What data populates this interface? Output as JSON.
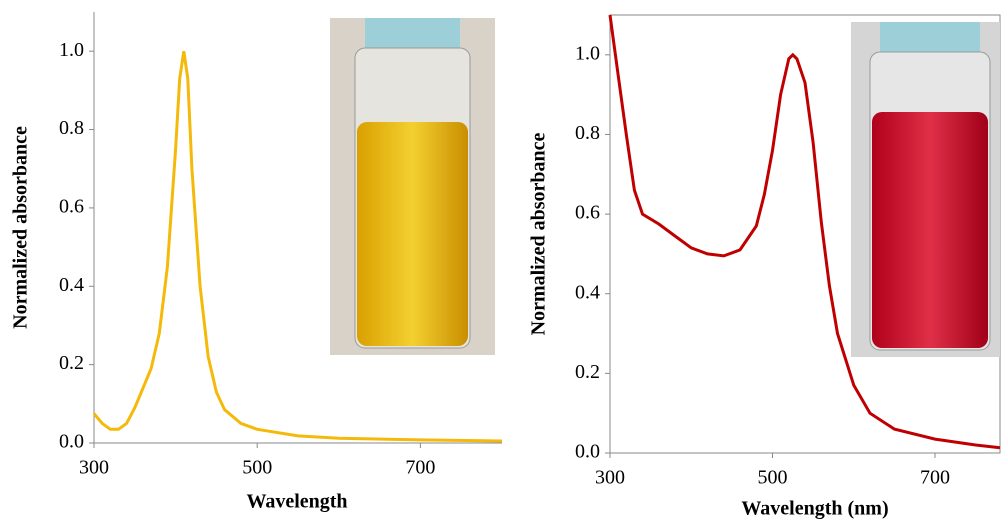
{
  "chart_data": [
    {
      "type": "line",
      "xlabel": "Wavelength",
      "ylabel": "Normalized absorbance",
      "color": "#f5b90a",
      "x": [
        300,
        310,
        320,
        330,
        340,
        350,
        360,
        370,
        380,
        390,
        400,
        405,
        410,
        415,
        420,
        430,
        440,
        450,
        460,
        480,
        500,
        550,
        600,
        700,
        800
      ],
      "values": [
        0.075,
        0.05,
        0.035,
        0.035,
        0.05,
        0.09,
        0.14,
        0.19,
        0.28,
        0.45,
        0.75,
        0.93,
        1.0,
        0.93,
        0.7,
        0.4,
        0.22,
        0.13,
        0.085,
        0.05,
        0.035,
        0.018,
        0.012,
        0.008,
        0.005
      ],
      "xlim": [
        300,
        800
      ],
      "ylim": [
        0,
        1.1
      ],
      "xticks": [
        300,
        500,
        700
      ],
      "yticks": [
        {
          "value": 0,
          "label": "0.0"
        },
        0.2,
        0.4,
        0.6,
        0.8,
        {
          "value": 1,
          "label": "1.0"
        }
      ]
    },
    {
      "type": "line",
      "xlabel": "Wavelength (nm)",
      "ylabel": "Normalized absorbance",
      "color": "#c00000",
      "x": [
        300,
        310,
        320,
        330,
        340,
        360,
        380,
        400,
        420,
        440,
        460,
        480,
        490,
        500,
        510,
        520,
        525,
        530,
        540,
        550,
        560,
        570,
        580,
        600,
        620,
        650,
        700,
        750,
        780
      ],
      "values": [
        1.1,
        0.95,
        0.8,
        0.66,
        0.6,
        0.575,
        0.545,
        0.515,
        0.5,
        0.495,
        0.51,
        0.57,
        0.65,
        0.76,
        0.9,
        0.99,
        1.0,
        0.99,
        0.93,
        0.78,
        0.58,
        0.42,
        0.3,
        0.17,
        0.1,
        0.06,
        0.035,
        0.02,
        0.013
      ],
      "xlim": [
        300,
        780
      ],
      "ylim": [
        0,
        1.1
      ],
      "xticks": [
        300,
        500,
        700
      ],
      "yticks": [
        {
          "value": 0,
          "label": "0.0"
        },
        0.2,
        0.4,
        0.6,
        0.8,
        {
          "value": 1,
          "label": "1.0"
        }
      ]
    }
  ]
}
